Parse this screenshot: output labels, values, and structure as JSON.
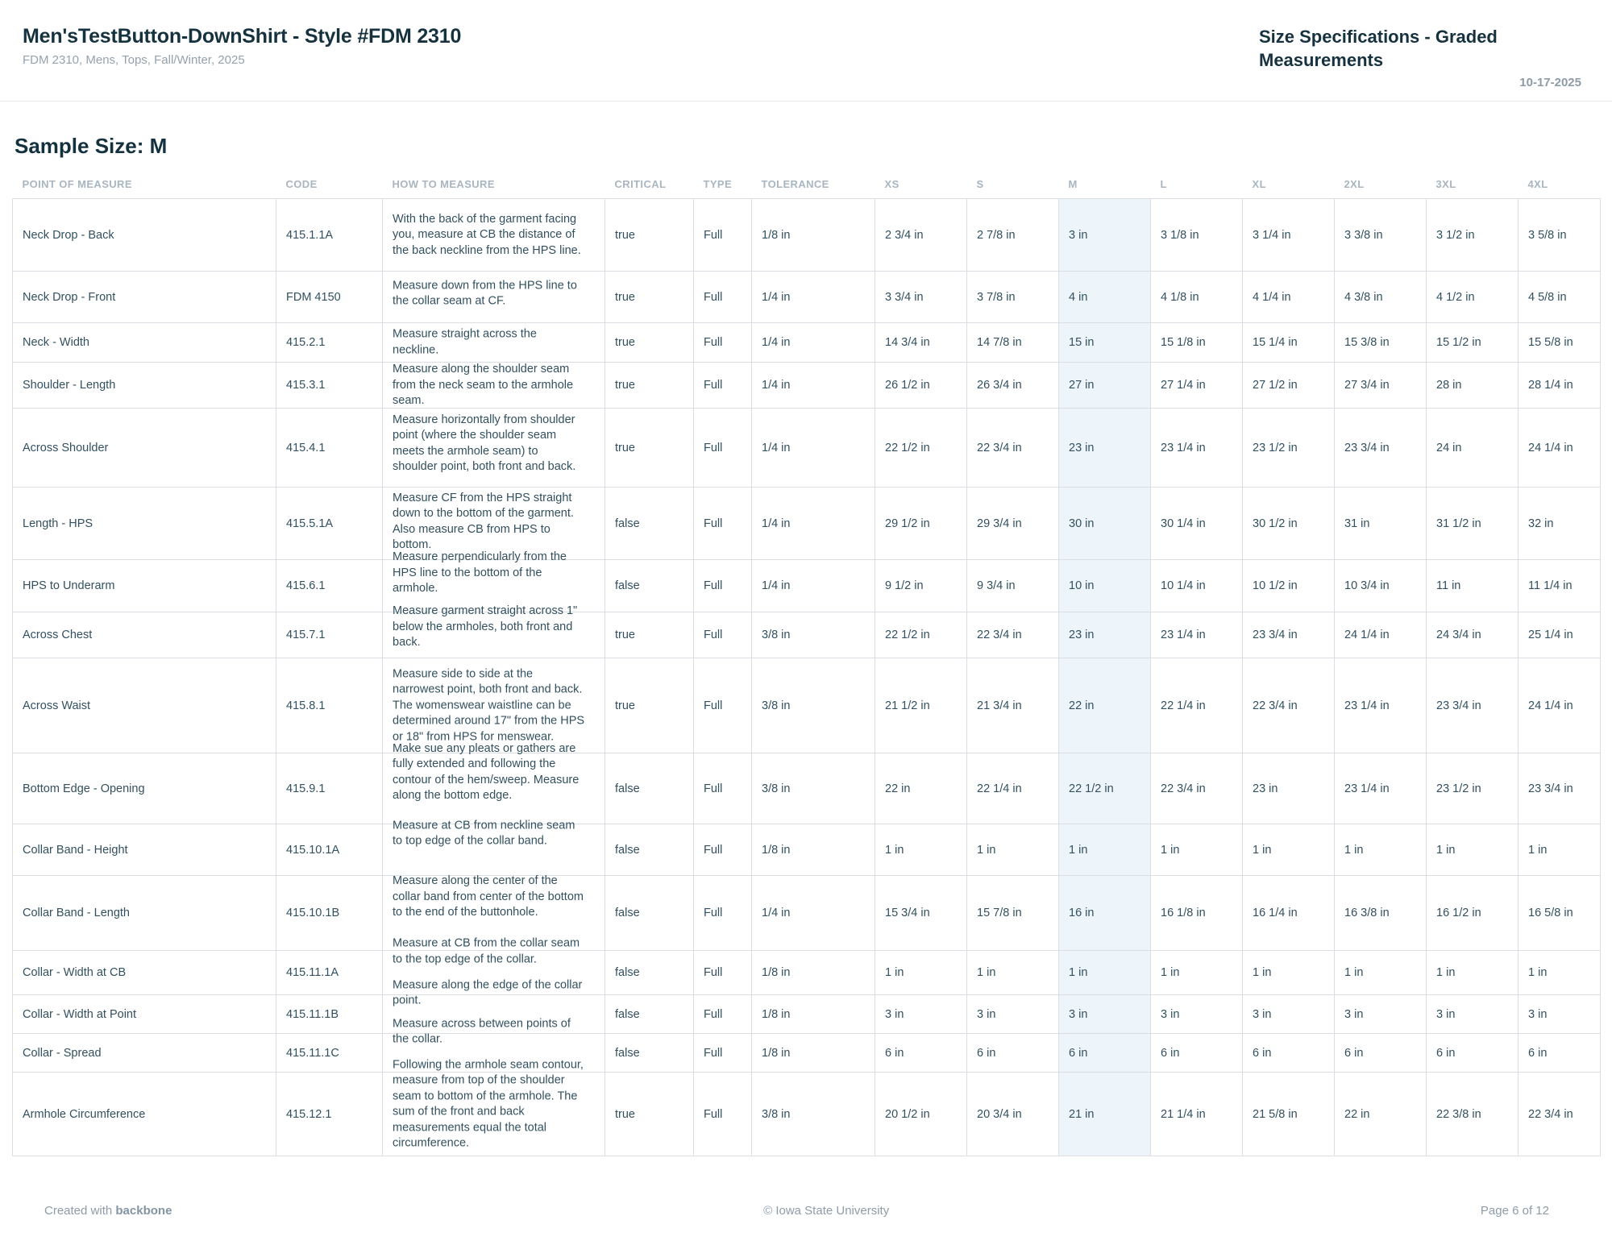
{
  "header": {
    "title": "Men'sTestButton-DownShirt - Style #FDM 2310",
    "subtitle": "FDM 2310, Mens, Tops, Fall/Winter, 2025",
    "doc_title": "Size Specifications - Graded Measurements",
    "date": "10-17-2025"
  },
  "sample_size_label": "Sample Size: M",
  "colors": {
    "heading_text": "#16323f",
    "body_text": "#32505f",
    "muted_text": "#95a2ad",
    "column_header_text": "#a9b6c0",
    "table_border": "#dbdfe3",
    "sample_column_highlight": "#eef5fa"
  },
  "table": {
    "columns": [
      "POINT OF MEASURE",
      "CODE",
      "HOW TO MEASURE",
      "CRITICAL",
      "TYPE",
      "TOLERANCE",
      "XS",
      "S",
      "M",
      "L",
      "XL",
      "2XL",
      "3XL",
      "4XL"
    ],
    "highlighted_column": "M",
    "rows": [
      {
        "point_of_measure": "Neck Drop - Back",
        "code": "415.1.1A",
        "how_to_measure": "With the back of the garment facing you, measure at CB the distance of the back neckline from the HPS line.",
        "critical": "true",
        "type": "Full",
        "tolerance": "1/8 in",
        "sizes": [
          "2 3/4 in",
          "2 7/8 in",
          "3 in",
          "3 1/8 in",
          "3 1/4 in",
          "3 3/8 in",
          "3 1/2 in",
          "3 5/8 in"
        ]
      },
      {
        "point_of_measure": "Neck Drop - Front",
        "code": "FDM 4150",
        "how_to_measure": "Measure down from the HPS line to the collar seam at CF.",
        "critical": "true",
        "type": "Full",
        "tolerance": "1/4 in",
        "sizes": [
          "3 3/4 in",
          "3 7/8 in",
          "4 in",
          "4 1/8 in",
          "4 1/4 in",
          "4 3/8 in",
          "4 1/2 in",
          "4 5/8 in"
        ]
      },
      {
        "point_of_measure": "Neck - Width",
        "code": "415.2.1",
        "how_to_measure": "Measure straight across the neckline.",
        "critical": "true",
        "type": "Full",
        "tolerance": "1/4 in",
        "sizes": [
          "14 3/4 in",
          "14 7/8 in",
          "15 in",
          "15 1/8 in",
          "15 1/4 in",
          "15 3/8 in",
          "15 1/2 in",
          "15 5/8 in"
        ]
      },
      {
        "point_of_measure": "Shoulder - Length",
        "code": "415.3.1",
        "how_to_measure": "Measure along the shoulder seam from the neck seam to the armhole seam.",
        "critical": "true",
        "type": "Full",
        "tolerance": "1/4 in",
        "sizes": [
          "26 1/2 in",
          "26 3/4 in",
          "27 in",
          "27 1/4 in",
          "27 1/2 in",
          "27 3/4 in",
          "28 in",
          "28 1/4 in"
        ]
      },
      {
        "point_of_measure": "Across Shoulder",
        "code": "415.4.1",
        "how_to_measure": "Measure horizontally from shoulder point (where the shoulder seam meets the armhole seam) to shoulder point, both front and back.",
        "critical": "true",
        "type": "Full",
        "tolerance": "1/4 in",
        "sizes": [
          "22 1/2 in",
          "22 3/4 in",
          "23 in",
          "23 1/4 in",
          "23 1/2 in",
          "23 3/4 in",
          "24 in",
          "24 1/4 in"
        ]
      },
      {
        "point_of_measure": "Length - HPS",
        "code": "415.5.1A",
        "how_to_measure": "Measure CF from the HPS straight down to the bottom of the garment. Also measure CB from HPS to bottom.",
        "critical": "false",
        "type": "Full",
        "tolerance": "1/4 in",
        "sizes": [
          "29 1/2 in",
          "29 3/4 in",
          "30 in",
          "30 1/4 in",
          "30 1/2 in",
          "31 in",
          "31 1/2 in",
          "32 in"
        ]
      },
      {
        "point_of_measure": "HPS to Underarm",
        "code": "415.6.1",
        "how_to_measure": "Measure perpendicularly from the HPS line to the bottom of the armhole.",
        "critical": "false",
        "type": "Full",
        "tolerance": "1/4 in",
        "sizes": [
          "9 1/2 in",
          "9 3/4 in",
          "10 in",
          "10 1/4 in",
          "10 1/2 in",
          "10 3/4 in",
          "11 in",
          "11 1/4 in"
        ]
      },
      {
        "point_of_measure": "Across Chest",
        "code": "415.7.1",
        "how_to_measure": "Measure garment straight across 1\" below the armholes, both front and back.",
        "critical": "true",
        "type": "Full",
        "tolerance": "3/8 in",
        "sizes": [
          "22 1/2 in",
          "22 3/4 in",
          "23 in",
          "23 1/4 in",
          "23 3/4 in",
          "24 1/4 in",
          "24 3/4 in",
          "25 1/4 in"
        ]
      },
      {
        "point_of_measure": "Across Waist",
        "code": "415.8.1",
        "how_to_measure": "Measure side to side at the narrowest point, both front and back. The womenswear waistline can be determined around 17\" from the HPS or 18\" from HPS for menswear.",
        "critical": "true",
        "type": "Full",
        "tolerance": "3/8 in",
        "sizes": [
          "21 1/2 in",
          "21 3/4 in",
          "22 in",
          "22 1/4 in",
          "22 3/4 in",
          "23 1/4 in",
          "23 3/4 in",
          "24 1/4 in"
        ]
      },
      {
        "point_of_measure": "Bottom Edge - Opening",
        "code": "415.9.1",
        "how_to_measure": "Make sue any pleats or gathers are fully extended and following the contour of the hem/sweep. Measure along the bottom edge.",
        "critical": "false",
        "type": "Full",
        "tolerance": "3/8 in",
        "sizes": [
          "22 in",
          "22 1/4 in",
          "22 1/2 in",
          "22 3/4 in",
          "23 in",
          "23 1/4 in",
          "23 1/2 in",
          "23 3/4 in"
        ]
      },
      {
        "point_of_measure": "Collar Band - Height",
        "code": "415.10.1A",
        "how_to_measure": "Measure at CB from neckline seam to top edge of the collar band.",
        "critical": "false",
        "type": "Full",
        "tolerance": "1/8 in",
        "sizes": [
          "1 in",
          "1 in",
          "1 in",
          "1 in",
          "1 in",
          "1 in",
          "1 in",
          "1 in"
        ]
      },
      {
        "point_of_measure": "Collar Band - Length",
        "code": "415.10.1B",
        "how_to_measure": "Measure along the center of the collar band from center of the bottom to the end of the buttonhole.",
        "critical": "false",
        "type": "Full",
        "tolerance": "1/4 in",
        "sizes": [
          "15 3/4 in",
          "15 7/8 in",
          "16 in",
          "16 1/8 in",
          "16 1/4 in",
          "16 3/8 in",
          "16 1/2 in",
          "16 5/8 in"
        ]
      },
      {
        "point_of_measure": "Collar - Width at CB",
        "code": "415.11.1A",
        "how_to_measure": "Measure at CB from the collar seam to the top edge of the collar.",
        "critical": "false",
        "type": "Full",
        "tolerance": "1/8 in",
        "sizes": [
          "1 in",
          "1 in",
          "1 in",
          "1 in",
          "1 in",
          "1 in",
          "1 in",
          "1 in"
        ]
      },
      {
        "point_of_measure": "Collar - Width at Point",
        "code": "415.11.1B",
        "how_to_measure": "Measure along the edge of the collar point.",
        "critical": "false",
        "type": "Full",
        "tolerance": "1/8 in",
        "sizes": [
          "3 in",
          "3 in",
          "3 in",
          "3 in",
          "3 in",
          "3 in",
          "3 in",
          "3 in"
        ]
      },
      {
        "point_of_measure": "Collar - Spread",
        "code": "415.11.1C",
        "how_to_measure": "Measure across between points of the collar.",
        "critical": "false",
        "type": "Full",
        "tolerance": "1/8 in",
        "sizes": [
          "6 in",
          "6 in",
          "6 in",
          "6 in",
          "6 in",
          "6 in",
          "6 in",
          "6 in"
        ]
      },
      {
        "point_of_measure": "Armhole Circumference",
        "code": "415.12.1",
        "how_to_measure": "Following the armhole seam contour, measure from top of the shoulder seam to bottom of the armhole. The sum of the front and back measurements equal the total circumference.",
        "critical": "true",
        "type": "Full",
        "tolerance": "3/8 in",
        "sizes": [
          "20 1/2 in",
          "20 3/4 in",
          "21 in",
          "21 1/4 in",
          "21 5/8 in",
          "22 in",
          "22 3/8 in",
          "22 3/4 in"
        ]
      }
    ]
  },
  "footer": {
    "created_with": "Created with",
    "brand": "backbone",
    "copyright": "© Iowa State University",
    "page": "Page 6 of 12"
  }
}
